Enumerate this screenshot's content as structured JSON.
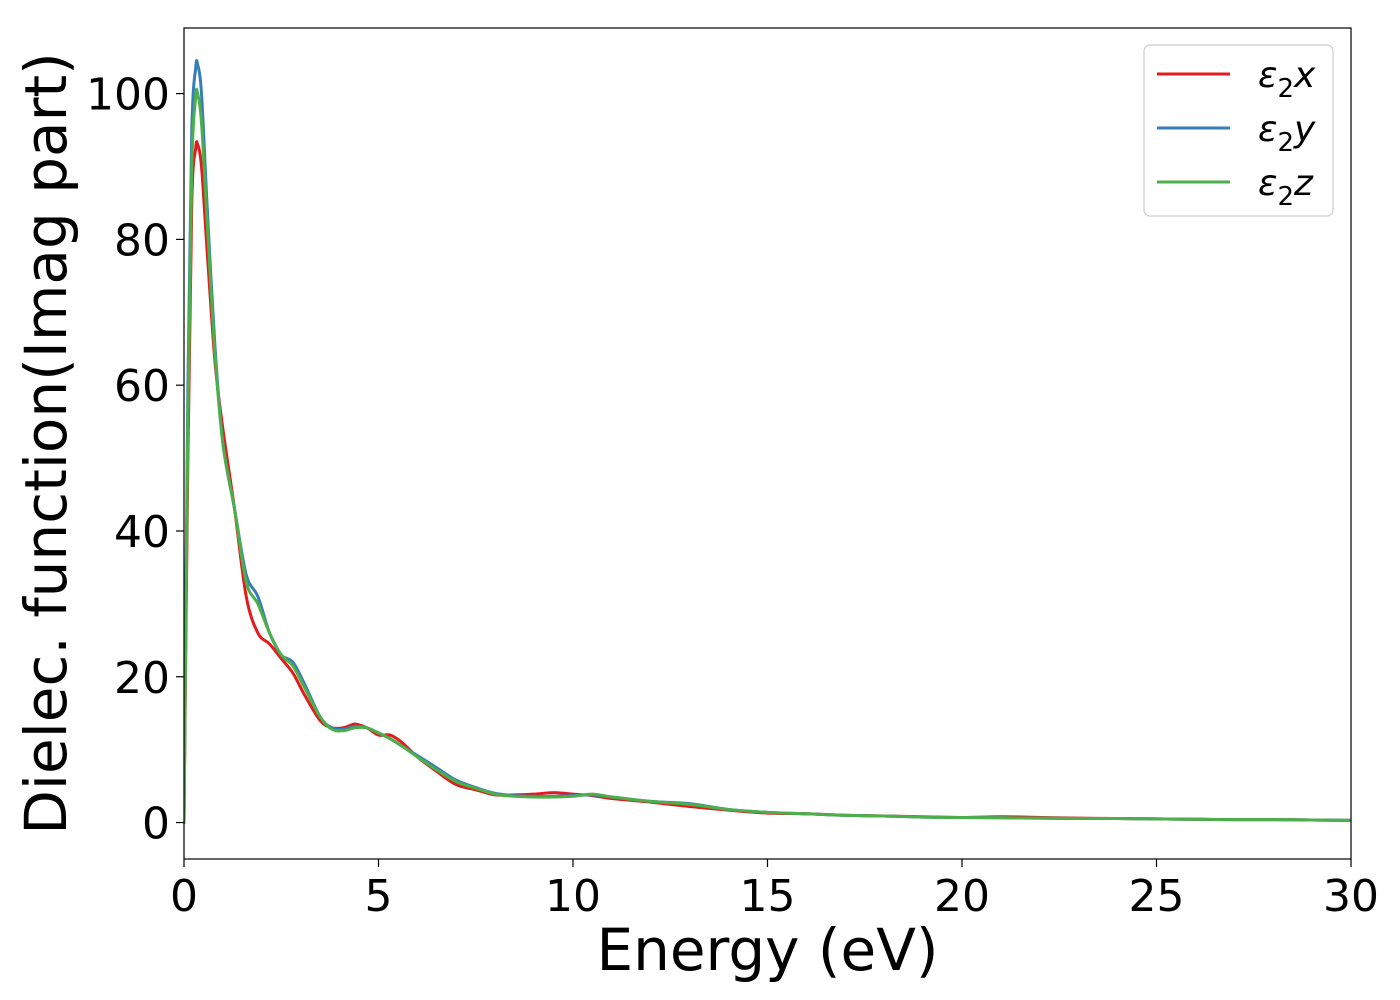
{
  "chart_data": {
    "type": "line",
    "title": "",
    "xlabel": "Energy (eV)",
    "ylabel": "Dielec. function(Imag part)",
    "xlim": [
      0,
      30
    ],
    "ylim": [
      -5,
      109
    ],
    "xticks": [
      0,
      5,
      10,
      15,
      20,
      25,
      30
    ],
    "yticks": [
      0,
      20,
      40,
      60,
      80,
      100
    ],
    "grid": false,
    "legend": {
      "placement": "top-right"
    },
    "series": [
      {
        "name": "ε2x",
        "base": "ε",
        "sub": "2",
        "axis": "x",
        "color": "#e41a1c",
        "x": [
          0,
          0.1,
          0.2,
          0.3,
          0.35,
          0.45,
          0.6,
          0.8,
          1.0,
          1.3,
          1.6,
          1.9,
          2.2,
          2.5,
          2.8,
          3.1,
          3.5,
          3.8,
          4.1,
          4.4,
          4.7,
          5.0,
          5.3,
          5.6,
          6.0,
          6.5,
          7.0,
          7.5,
          8.0,
          8.5,
          9.0,
          9.5,
          10.0,
          10.5,
          11.0,
          12.0,
          13.0,
          14.0,
          15.0,
          16.0,
          17.0,
          18.0,
          19.0,
          20.0,
          21.0,
          22.0,
          23.0,
          24.0,
          25.0,
          26.0,
          27.0,
          28.0,
          29.0,
          30.0
        ],
        "values": [
          0,
          50,
          85,
          92.5,
          93,
          90,
          78,
          63,
          54,
          43,
          31,
          26,
          24.5,
          22.5,
          20.5,
          17.5,
          14,
          13,
          13,
          13.5,
          13,
          12,
          12,
          11,
          9,
          7,
          5.2,
          4.5,
          3.8,
          3.8,
          3.9,
          4.1,
          3.9,
          3.7,
          3.3,
          2.8,
          2.2,
          1.7,
          1.3,
          1.2,
          1.0,
          0.9,
          0.8,
          0.7,
          0.8,
          0.7,
          0.6,
          0.55,
          0.5,
          0.45,
          0.4,
          0.4,
          0.35,
          0.3
        ]
      },
      {
        "name": "ε2y",
        "base": "ε",
        "sub": "2",
        "axis": "y",
        "color": "#377eb8",
        "x": [
          0,
          0.1,
          0.2,
          0.3,
          0.35,
          0.45,
          0.6,
          0.8,
          1.0,
          1.3,
          1.6,
          1.9,
          2.2,
          2.5,
          2.8,
          3.1,
          3.5,
          3.8,
          4.1,
          4.4,
          4.7,
          5.0,
          5.3,
          5.6,
          6.0,
          6.5,
          7.0,
          7.5,
          8.0,
          8.5,
          9.0,
          9.5,
          10.0,
          10.5,
          11.0,
          12.0,
          13.0,
          14.0,
          15.0,
          16.0,
          17.0,
          18.0,
          19.0,
          20.0,
          21.0,
          22.0,
          23.0,
          24.0,
          25.0,
          26.0,
          27.0,
          28.0,
          29.0,
          30.0
        ],
        "values": [
          0,
          60,
          95,
          103.5,
          104,
          100,
          84,
          65,
          52,
          43,
          34,
          31,
          26,
          23,
          22,
          19,
          14.5,
          13,
          12.8,
          13.2,
          13,
          12.3,
          11.5,
          10.5,
          9.2,
          7.5,
          5.8,
          4.8,
          4.0,
          3.7,
          3.6,
          3.6,
          3.7,
          3.8,
          3.5,
          2.9,
          2.6,
          1.8,
          1.4,
          1.2,
          1.0,
          0.9,
          0.75,
          0.7,
          0.65,
          0.6,
          0.55,
          0.55,
          0.5,
          0.45,
          0.4,
          0.4,
          0.35,
          0.3
        ]
      },
      {
        "name": "ε2z",
        "base": "ε",
        "sub": "2",
        "axis": "z",
        "color": "#4daf4a",
        "x": [
          0,
          0.1,
          0.2,
          0.3,
          0.35,
          0.45,
          0.6,
          0.8,
          1.0,
          1.3,
          1.6,
          1.9,
          2.2,
          2.5,
          2.8,
          3.1,
          3.5,
          3.8,
          4.1,
          4.4,
          4.7,
          5.0,
          5.3,
          5.6,
          6.0,
          6.5,
          7.0,
          7.5,
          8.0,
          8.5,
          9.0,
          9.5,
          10.0,
          10.5,
          11.0,
          12.0,
          13.0,
          14.0,
          15.0,
          16.0,
          17.0,
          18.0,
          19.0,
          20.0,
          21.0,
          22.0,
          23.0,
          24.0,
          25.0,
          26.0,
          27.0,
          28.0,
          29.0,
          30.0
        ],
        "values": [
          0,
          55,
          90,
          99.5,
          100,
          96,
          82,
          64,
          52,
          43,
          33,
          30,
          26,
          23,
          21.5,
          18.5,
          14.5,
          12.8,
          12.6,
          13,
          13,
          12.3,
          11.5,
          10.5,
          9.0,
          7.2,
          5.6,
          4.7,
          3.9,
          3.6,
          3.5,
          3.5,
          3.6,
          3.9,
          3.5,
          2.9,
          2.5,
          1.8,
          1.4,
          1.2,
          1.0,
          0.9,
          0.75,
          0.7,
          0.65,
          0.6,
          0.55,
          0.55,
          0.5,
          0.45,
          0.4,
          0.4,
          0.35,
          0.3
        ]
      }
    ]
  }
}
